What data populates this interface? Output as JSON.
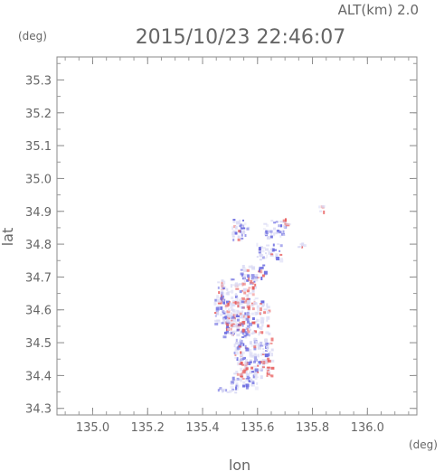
{
  "header": {
    "altitude_label": "ALT(km) 2.0",
    "timestamp": "2015/10/23 22:46:07",
    "y_unit": "(deg)",
    "x_unit": "(deg)"
  },
  "chart_data": {
    "type": "heatmap",
    "title": "2015/10/23 22:46:07",
    "xlabel": "lon",
    "ylabel": "lat",
    "xlim": [
      134.87,
      136.18
    ],
    "ylim": [
      34.28,
      35.37
    ],
    "x_ticks": [
      "135.0",
      "135.2",
      "135.4",
      "135.6",
      "135.8",
      "136.0"
    ],
    "y_ticks": [
      "34.3",
      "34.4",
      "34.5",
      "34.6",
      "34.7",
      "34.8",
      "34.9",
      "35.0",
      "35.1",
      "35.2",
      "35.3"
    ],
    "grid": false,
    "colors": {
      "positive": "#e86060",
      "negative": "#6a6ae0",
      "neutral": "#dcdcf5"
    },
    "clusters": [
      {
        "lon": 135.535,
        "lat": 34.86,
        "w": 0.06,
        "h": 0.04,
        "v": -0.5
      },
      {
        "lon": 135.53,
        "lat": 34.83,
        "w": 0.05,
        "h": 0.03,
        "v": -0.3
      },
      {
        "lon": 135.66,
        "lat": 34.85,
        "w": 0.08,
        "h": 0.05,
        "v": -0.4
      },
      {
        "lon": 135.64,
        "lat": 34.78,
        "w": 0.09,
        "h": 0.05,
        "v": -0.2
      },
      {
        "lon": 135.7,
        "lat": 34.87,
        "w": 0.02,
        "h": 0.02,
        "v": 0.8
      },
      {
        "lon": 135.76,
        "lat": 34.8,
        "w": 0.03,
        "h": 0.02,
        "v": 0.6
      },
      {
        "lon": 135.83,
        "lat": 34.91,
        "w": 0.02,
        "h": 0.02,
        "v": 0.7
      },
      {
        "lon": 135.58,
        "lat": 34.72,
        "w": 0.09,
        "h": 0.04,
        "v": -0.3
      },
      {
        "lon": 135.52,
        "lat": 34.66,
        "w": 0.14,
        "h": 0.08,
        "v": 0.2
      },
      {
        "lon": 135.56,
        "lat": 34.58,
        "w": 0.16,
        "h": 0.1,
        "v": 0.4
      },
      {
        "lon": 135.52,
        "lat": 34.56,
        "w": 0.1,
        "h": 0.08,
        "v": -0.4
      },
      {
        "lon": 135.58,
        "lat": 34.48,
        "w": 0.14,
        "h": 0.08,
        "v": -0.3
      },
      {
        "lon": 135.59,
        "lat": 34.42,
        "w": 0.12,
        "h": 0.06,
        "v": 0.5
      },
      {
        "lon": 135.55,
        "lat": 34.39,
        "w": 0.1,
        "h": 0.05,
        "v": -0.5
      },
      {
        "lon": 135.49,
        "lat": 34.36,
        "w": 0.07,
        "h": 0.02,
        "v": -0.7
      },
      {
        "lon": 135.46,
        "lat": 34.6,
        "w": 0.04,
        "h": 0.08,
        "v": -0.6
      }
    ]
  }
}
